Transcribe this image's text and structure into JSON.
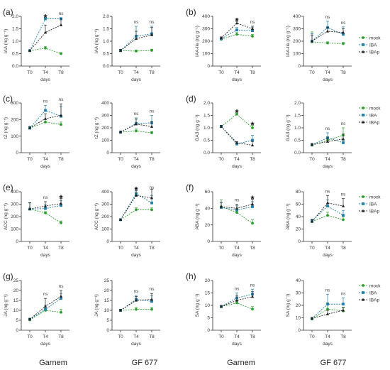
{
  "colors": {
    "mock": "#2ca02c",
    "IBA": "#1f7fa8",
    "IBAp": "#222222"
  },
  "legend": [
    "mock",
    "IBA",
    "IBAp"
  ],
  "footer": [
    "Garnem",
    "GF 677",
    "Garnem",
    "GF 677"
  ],
  "chart_data": [
    {
      "panel": "(a)",
      "type": "line",
      "categories": [
        "T0",
        "T4",
        "T8"
      ],
      "xlabel": "days",
      "ylabel": "IAA (ng g⁻¹)",
      "ylim": [
        0,
        2.0
      ],
      "yticks": [
        0.0,
        0.5,
        1.0,
        1.5,
        2.0
      ],
      "ytick_labels": [
        "0.0",
        "0.5",
        "1.0",
        "1.5",
        "2.0"
      ],
      "series": [
        {
          "name": "mock",
          "values": [
            0.62,
            0.72,
            0.5
          ],
          "errors": [
            0.03,
            0.06,
            0.04
          ]
        },
        {
          "name": "IBA",
          "values": [
            0.62,
            1.9,
            1.9
          ],
          "errors": [
            0.03,
            0.05,
            0.05
          ]
        },
        {
          "name": "IBAp",
          "values": [
            0.62,
            1.35,
            1.65
          ],
          "errors": [
            0.03,
            0.3,
            0.25
          ]
        }
      ],
      "annotations": [
        "",
        "*",
        "ns"
      ]
    },
    {
      "panel": "",
      "type": "line",
      "categories": [
        "T0",
        "T4",
        "T8"
      ],
      "xlabel": "days",
      "ylabel": "IAA (ng g⁻¹)",
      "ylim": [
        0,
        2.0
      ],
      "yticks": [
        0.0,
        0.5,
        1.0,
        1.5,
        2.0
      ],
      "ytick_labels": [
        "0.0",
        "0.5",
        "1.0",
        "1.5",
        "2.0"
      ],
      "series": [
        {
          "name": "mock",
          "values": [
            0.62,
            0.6,
            0.63
          ],
          "errors": [
            0.05,
            0.05,
            0.05
          ]
        },
        {
          "name": "IBA",
          "values": [
            0.62,
            1.2,
            1.3
          ],
          "errors": [
            0.05,
            0.4,
            0.3
          ]
        },
        {
          "name": "IBAp",
          "values": [
            0.62,
            1.1,
            1.25
          ],
          "errors": [
            0.05,
            0.3,
            0.3
          ]
        }
      ],
      "annotations": [
        "",
        "ns",
        "ns"
      ]
    },
    {
      "panel": "(b)",
      "type": "line",
      "categories": [
        "T0",
        "T4",
        "T8"
      ],
      "xlabel": "days",
      "ylabel": "IAA-Ile (ng g⁻¹)",
      "ylim": [
        0,
        400
      ],
      "yticks": [
        0,
        100,
        200,
        300,
        400
      ],
      "ytick_labels": [
        "0",
        "100",
        "200",
        "300",
        "400"
      ],
      "series": [
        {
          "name": "mock",
          "values": [
            215,
            255,
            240
          ],
          "errors": [
            10,
            15,
            15
          ]
        },
        {
          "name": "IBA",
          "values": [
            220,
            290,
            285
          ],
          "errors": [
            10,
            20,
            25
          ]
        },
        {
          "name": "IBAp",
          "values": [
            225,
            345,
            300
          ],
          "errors": [
            10,
            15,
            20
          ]
        }
      ],
      "annotations": [
        "",
        "*",
        "ns"
      ]
    },
    {
      "panel": "",
      "type": "line",
      "categories": [
        "T0",
        "T4",
        "T8"
      ],
      "xlabel": "days",
      "ylabel": "IAA-Ile (ng g⁻¹)",
      "ylim": [
        0,
        400
      ],
      "yticks": [
        0,
        100,
        200,
        300,
        400
      ],
      "ytick_labels": [
        "0",
        "100",
        "200",
        "300",
        "400"
      ],
      "series": [
        {
          "name": "mock",
          "values": [
            195,
            185,
            180
          ],
          "errors": [
            80,
            10,
            10
          ]
        },
        {
          "name": "IBA",
          "values": [
            200,
            310,
            255
          ],
          "errors": [
            60,
            50,
            60
          ]
        },
        {
          "name": "IBAp",
          "values": [
            200,
            280,
            270
          ],
          "errors": [
            50,
            30,
            30
          ]
        }
      ],
      "annotations": [
        "",
        "ns",
        "ns"
      ]
    },
    {
      "panel": "(c)",
      "type": "line",
      "categories": [
        "T0",
        "T4",
        "T8"
      ],
      "xlabel": "days",
      "ylabel": "tZ (ng g⁻¹)",
      "ylim": [
        0,
        300
      ],
      "yticks": [
        0,
        100,
        200,
        300
      ],
      "ytick_labels": [
        "0",
        "100",
        "200",
        "300"
      ],
      "series": [
        {
          "name": "mock",
          "values": [
            148,
            185,
            170
          ],
          "errors": [
            8,
            15,
            15
          ]
        },
        {
          "name": "IBA",
          "values": [
            148,
            255,
            220
          ],
          "errors": [
            8,
            30,
            60
          ]
        },
        {
          "name": "IBAp",
          "values": [
            150,
            205,
            225
          ],
          "errors": [
            8,
            30,
            70
          ]
        }
      ],
      "annotations": [
        "",
        "ns",
        "ns"
      ]
    },
    {
      "panel": "",
      "type": "line",
      "categories": [
        "T0",
        "T4",
        "T8"
      ],
      "xlabel": "days",
      "ylabel": "tZ (ng g⁻¹)",
      "ylim": [
        0,
        400
      ],
      "yticks": [
        0,
        100,
        200,
        300,
        400
      ],
      "ytick_labels": [
        "0",
        "100",
        "200",
        "300",
        "400"
      ],
      "series": [
        {
          "name": "mock",
          "values": [
            165,
            175,
            160
          ],
          "errors": [
            10,
            15,
            10
          ]
        },
        {
          "name": "IBA",
          "values": [
            165,
            235,
            240
          ],
          "errors": [
            10,
            45,
            60
          ]
        },
        {
          "name": "IBAp",
          "values": [
            165,
            230,
            210
          ],
          "errors": [
            10,
            40,
            40
          ]
        }
      ],
      "annotations": [
        "",
        "ns",
        "ns"
      ]
    },
    {
      "panel": "(d)",
      "type": "line",
      "categories": [
        "T0",
        "T4",
        "T8"
      ],
      "xlabel": "days",
      "ylabel": "GA3 (ng g⁻¹)",
      "ylim": [
        0,
        2.0
      ],
      "yticks": [
        0.0,
        0.5,
        1.0,
        1.5,
        2.0
      ],
      "ytick_labels": [
        "0.0",
        "0.5",
        "1.0",
        "1.5",
        "2.0"
      ],
      "series": [
        {
          "name": "mock",
          "values": [
            1.05,
            1.55,
            1.0
          ],
          "errors": [
            0.05,
            0.05,
            0.1
          ]
        },
        {
          "name": "IBA",
          "values": [
            1.05,
            0.35,
            0.5
          ],
          "errors": [
            0.05,
            0.05,
            0.2
          ]
        },
        {
          "name": "IBAp",
          "values": [
            1.05,
            0.4,
            0.3
          ],
          "errors": [
            0.05,
            0.05,
            0.15
          ]
        }
      ],
      "annotations": [
        "",
        "*",
        "*"
      ]
    },
    {
      "panel": "",
      "type": "line",
      "categories": [
        "T0",
        "T4",
        "T8"
      ],
      "xlabel": "days",
      "ylabel": "GA3 (ng g⁻¹)",
      "ylim": [
        0,
        2.0
      ],
      "yticks": [
        0.0,
        0.5,
        1.0,
        1.5,
        2.0
      ],
      "ytick_labels": [
        "0.0",
        "0.5",
        "1.0",
        "1.5",
        "2.0"
      ],
      "series": [
        {
          "name": "mock",
          "values": [
            0.3,
            0.5,
            0.7
          ],
          "errors": [
            0.05,
            0.1,
            0.3
          ]
        },
        {
          "name": "IBA",
          "values": [
            0.32,
            0.6,
            0.4
          ],
          "errors": [
            0.05,
            0.2,
            0.1
          ]
        },
        {
          "name": "IBAp",
          "values": [
            0.32,
            0.45,
            0.55
          ],
          "errors": [
            0.05,
            0.15,
            0.2
          ]
        }
      ],
      "annotations": [
        "",
        "ns",
        "ns"
      ]
    },
    {
      "panel": "(e)",
      "type": "line",
      "categories": [
        "T0",
        "T4",
        "T8"
      ],
      "xlabel": "days",
      "ylabel": "ACC (ng g⁻¹)",
      "ylim": [
        0,
        400
      ],
      "yticks": [
        0,
        100,
        200,
        300,
        400
      ],
      "ytick_labels": [
        "0",
        "100",
        "200",
        "300",
        "400"
      ],
      "series": [
        {
          "name": "mock",
          "values": [
            260,
            230,
            150
          ],
          "errors": [
            50,
            10,
            15
          ]
        },
        {
          "name": "IBA",
          "values": [
            260,
            265,
            290
          ],
          "errors": [
            50,
            30,
            40
          ]
        },
        {
          "name": "IBAp",
          "values": [
            262,
            285,
            305
          ],
          "errors": [
            50,
            35,
            40
          ]
        }
      ],
      "annotations": [
        "",
        "ns",
        "*"
      ]
    },
    {
      "panel": "",
      "type": "line",
      "categories": [
        "T0",
        "T4",
        "T8"
      ],
      "xlabel": "days",
      "ylabel": "ACC (ng g⁻¹)",
      "ylim": [
        0,
        400
      ],
      "yticks": [
        0,
        100,
        200,
        300,
        400
      ],
      "ytick_labels": [
        "0",
        "100",
        "200",
        "300",
        "400"
      ],
      "series": [
        {
          "name": "mock",
          "values": [
            175,
            255,
            255
          ],
          "errors": [
            5,
            15,
            15
          ]
        },
        {
          "name": "IBA",
          "values": [
            175,
            385,
            310
          ],
          "errors": [
            5,
            40,
            60
          ]
        },
        {
          "name": "IBAp",
          "values": [
            175,
            370,
            350
          ],
          "errors": [
            5,
            40,
            70
          ]
        }
      ],
      "annotations": [
        "",
        "*",
        "ns"
      ]
    },
    {
      "panel": "(f)",
      "type": "line",
      "categories": [
        "T0",
        "T4",
        "T8"
      ],
      "xlabel": "days",
      "ylabel": "ABA (ng g⁻¹)",
      "ylim": [
        0,
        60
      ],
      "yticks": [
        0,
        20,
        40,
        60
      ],
      "ytick_labels": [
        "0",
        "20",
        "40",
        "60"
      ],
      "series": [
        {
          "name": "mock",
          "values": [
            42,
            35,
            22
          ],
          "errors": [
            8,
            4,
            4
          ]
        },
        {
          "name": "IBA",
          "values": [
            41,
            38,
            42
          ],
          "errors": [
            6,
            5,
            6
          ]
        },
        {
          "name": "IBAp",
          "values": [
            42,
            40,
            45
          ],
          "errors": [
            5,
            5,
            6
          ]
        }
      ],
      "annotations": [
        "",
        "ns",
        "*"
      ]
    },
    {
      "panel": "",
      "type": "line",
      "categories": [
        "T0",
        "T4",
        "T8"
      ],
      "xlabel": "days",
      "ylabel": "ABA (ng g⁻¹)",
      "ylim": [
        0,
        80
      ],
      "yticks": [
        0,
        20,
        40,
        60,
        80
      ],
      "ytick_labels": [
        "0",
        "20",
        "40",
        "60",
        "80"
      ],
      "series": [
        {
          "name": "mock",
          "values": [
            32,
            42,
            35
          ],
          "errors": [
            3,
            5,
            5
          ]
        },
        {
          "name": "IBA",
          "values": [
            33,
            57,
            42
          ],
          "errors": [
            3,
            10,
            8
          ]
        },
        {
          "name": "IBAp",
          "values": [
            32,
            62,
            57
          ],
          "errors": [
            3,
            12,
            12
          ]
        }
      ],
      "annotations": [
        "",
        "ns",
        "ns"
      ]
    },
    {
      "panel": "(g)",
      "type": "line",
      "categories": [
        "T0",
        "T4",
        "T8"
      ],
      "xlabel": "days",
      "ylabel": "JA (ng g⁻¹)",
      "ylim": [
        0,
        25
      ],
      "yticks": [
        0,
        5,
        10,
        15,
        20,
        25
      ],
      "ytick_labels": [
        "0",
        "5",
        "10",
        "15",
        "20",
        "25"
      ],
      "series": [
        {
          "name": "mock",
          "values": [
            5.2,
            10,
            9
          ],
          "errors": [
            0.5,
            1.5,
            1.5
          ]
        },
        {
          "name": "IBA",
          "values": [
            5.5,
            10.5,
            16
          ],
          "errors": [
            0.5,
            2,
            2.5
          ]
        },
        {
          "name": "IBAp",
          "values": [
            5.5,
            12,
            17
          ],
          "errors": [
            0.5,
            4,
            3
          ]
        }
      ],
      "annotations": [
        "",
        "ns",
        "ns"
      ]
    },
    {
      "panel": "",
      "type": "line",
      "categories": [
        "T0",
        "T4",
        "T8"
      ],
      "xlabel": "days",
      "ylabel": "JA (ng g⁻¹)",
      "ylim": [
        0,
        25
      ],
      "yticks": [
        0,
        5,
        10,
        15,
        20,
        25
      ],
      "ytick_labels": [
        "0",
        "5",
        "10",
        "15",
        "20",
        "25"
      ],
      "series": [
        {
          "name": "mock",
          "values": [
            10,
            10.5,
            10.5
          ],
          "errors": [
            0.5,
            1,
            1
          ]
        },
        {
          "name": "IBA",
          "values": [
            10,
            15.5,
            14.5
          ],
          "errors": [
            0.5,
            2,
            3
          ]
        },
        {
          "name": "IBAp",
          "values": [
            10,
            15,
            15.5
          ],
          "errors": [
            0.5,
            2,
            3
          ]
        }
      ],
      "annotations": [
        "",
        "ns",
        "ns"
      ]
    },
    {
      "panel": "(h)",
      "type": "line",
      "categories": [
        "T0",
        "T4",
        "T8"
      ],
      "xlabel": "days",
      "ylabel": "SA (ng g⁻¹)",
      "ylim": [
        0,
        20
      ],
      "yticks": [
        0,
        5,
        10,
        15,
        20
      ],
      "ytick_labels": [
        "0",
        "5",
        "10",
        "15",
        "20"
      ],
      "series": [
        {
          "name": "mock",
          "values": [
            9.5,
            11,
            8.5
          ],
          "errors": [
            0.5,
            1,
            1
          ]
        },
        {
          "name": "IBA",
          "values": [
            9.5,
            13,
            14.5
          ],
          "errors": [
            0.5,
            2,
            2
          ]
        },
        {
          "name": "IBAp",
          "values": [
            9.5,
            12,
            13.5
          ],
          "errors": [
            0.5,
            2,
            2
          ]
        }
      ],
      "annotations": [
        "",
        "ns",
        "ns"
      ]
    },
    {
      "panel": "",
      "type": "line",
      "categories": [
        "T0",
        "T4",
        "T8"
      ],
      "xlabel": "days",
      "ylabel": "SA (ng g⁻¹)",
      "ylim": [
        0,
        40
      ],
      "yticks": [
        0,
        10,
        20,
        30,
        40
      ],
      "ytick_labels": [
        "0",
        "10",
        "20",
        "30",
        "40"
      ],
      "series": [
        {
          "name": "mock",
          "values": [
            9,
            17,
            15.5
          ],
          "errors": [
            0.5,
            5,
            3
          ]
        },
        {
          "name": "IBA",
          "values": [
            9.5,
            21,
            21
          ],
          "errors": [
            0.5,
            8,
            5
          ]
        },
        {
          "name": "IBAp",
          "values": [
            9.5,
            13,
            16
          ],
          "errors": [
            0.5,
            3,
            2
          ]
        }
      ],
      "annotations": [
        "",
        "ns",
        "ns"
      ]
    }
  ]
}
